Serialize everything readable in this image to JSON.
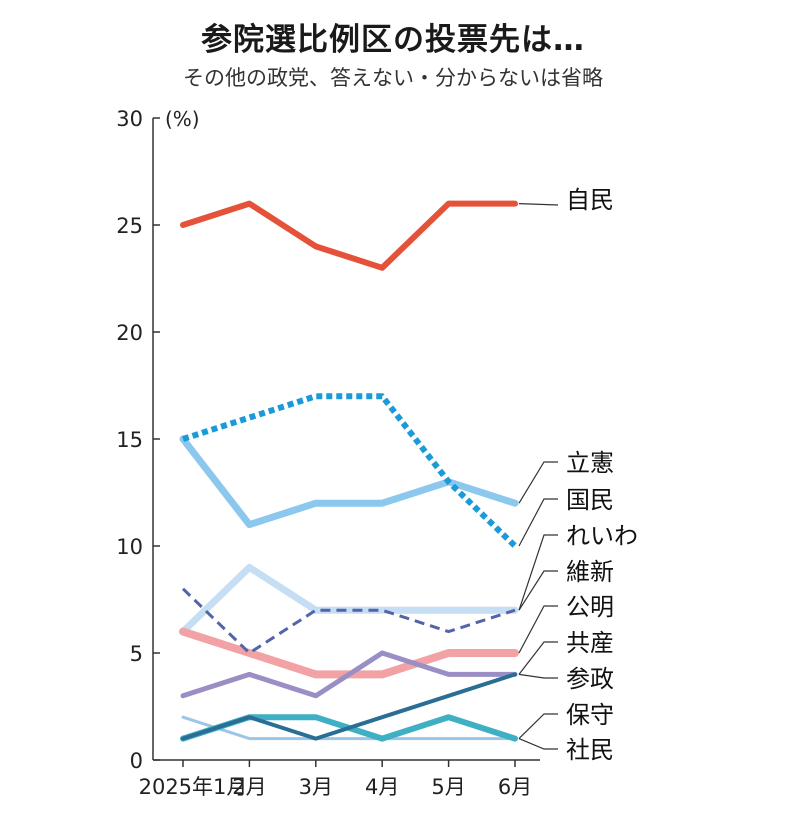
{
  "header": {
    "title": "参院選比例区の投票先は…",
    "subtitle": "その他の政党、答えない・分からないは省略"
  },
  "chart_data": {
    "type": "line",
    "title": "参院選比例区の投票先は…",
    "subtitle": "その他の政党、答えない・分からないは省略",
    "unit": "(%)",
    "categories": [
      "2025年1月",
      "2月",
      "3月",
      "4月",
      "5月",
      "6月"
    ],
    "ylim": [
      0,
      30
    ],
    "yticks": [
      0,
      5,
      10,
      15,
      20,
      25,
      30
    ],
    "grid": false,
    "series": [
      {
        "name": "自民",
        "values": [
          25,
          26,
          24,
          23,
          26,
          26
        ],
        "color": "#e5523a",
        "style": "solid",
        "width": 6
      },
      {
        "name": "立憲",
        "values": [
          15,
          11,
          12,
          12,
          13,
          12
        ],
        "color": "#8cc8ee",
        "style": "solid",
        "width": 7
      },
      {
        "name": "国民",
        "values": [
          15,
          16,
          17,
          17,
          13,
          10
        ],
        "color": "#1a9ad6",
        "style": "dotted",
        "width": 6
      },
      {
        "name": "れいわ",
        "values": [
          6,
          9,
          7,
          7,
          7,
          7
        ],
        "color": "#c6def4",
        "style": "solid",
        "width": 7
      },
      {
        "name": "維新",
        "values": [
          8,
          5,
          7,
          7,
          6,
          7
        ],
        "color": "#5464a8",
        "style": "dashed",
        "width": 3
      },
      {
        "name": "公明",
        "values": [
          6,
          5,
          4,
          4,
          5,
          5
        ],
        "color": "#f2a2a4",
        "style": "solid",
        "width": 8
      },
      {
        "name": "共産",
        "values": [
          3,
          4,
          3,
          5,
          4,
          4
        ],
        "color": "#9b8ec4",
        "style": "solid",
        "width": 5
      },
      {
        "name": "参政",
        "values": [
          1,
          2,
          1,
          2,
          3,
          4
        ],
        "color": "#2a6e96",
        "style": "solid",
        "width": 4
      },
      {
        "name": "保守",
        "values": [
          2,
          1,
          1,
          1,
          1,
          1
        ],
        "color": "#9cc6e8",
        "style": "solid",
        "width": 3
      },
      {
        "name": "社民",
        "values": [
          1,
          2,
          2,
          1,
          2,
          1
        ],
        "color": "#3fb0c4",
        "style": "solid",
        "width": 6
      }
    ]
  }
}
